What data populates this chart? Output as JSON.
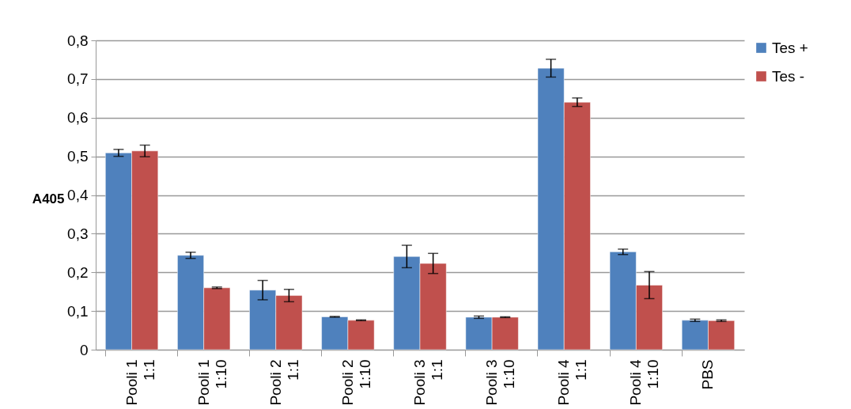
{
  "chart_data": {
    "type": "bar",
    "ylabel": "A405",
    "categories": [
      "Pooli 1\n1:1",
      "Pooli 1\n1:10",
      "Pooli 2\n1:1",
      "Pooli 2\n1:10",
      "Pooli 3\n1:1",
      "Pooli 3\n1:10",
      "Pooli 4\n1:1",
      "Pooli 4\n1:10",
      "PBS"
    ],
    "series": [
      {
        "name": "Tes +",
        "color": "#4f81bd",
        "values": [
          0.509,
          0.244,
          0.154,
          0.085,
          0.241,
          0.084,
          0.728,
          0.253,
          0.076
        ],
        "errors": [
          0.009,
          0.008,
          0.025,
          0.001,
          0.029,
          0.003,
          0.023,
          0.007,
          0.003
        ]
      },
      {
        "name": "Tes -",
        "color": "#c0504d",
        "values": [
          0.514,
          0.16,
          0.14,
          0.076,
          0.223,
          0.084,
          0.64,
          0.167,
          0.075
        ],
        "errors": [
          0.015,
          0.002,
          0.016,
          0.001,
          0.026,
          0.001,
          0.011,
          0.035,
          0.002
        ]
      }
    ],
    "ylim": [
      0,
      0.8
    ],
    "yticks": [
      {
        "value": 0,
        "label": "0"
      },
      {
        "value": 0.1,
        "label": "0,1"
      },
      {
        "value": 0.2,
        "label": "0,2"
      },
      {
        "value": 0.3,
        "label": "0,3"
      },
      {
        "value": 0.4,
        "label": "0,4"
      },
      {
        "value": 0.5,
        "label": "0,5"
      },
      {
        "value": 0.6,
        "label": "0,6"
      },
      {
        "value": 0.7,
        "label": "0,7"
      },
      {
        "value": 0.8,
        "label": "0,8"
      }
    ],
    "grid": "y",
    "legend": "right"
  }
}
